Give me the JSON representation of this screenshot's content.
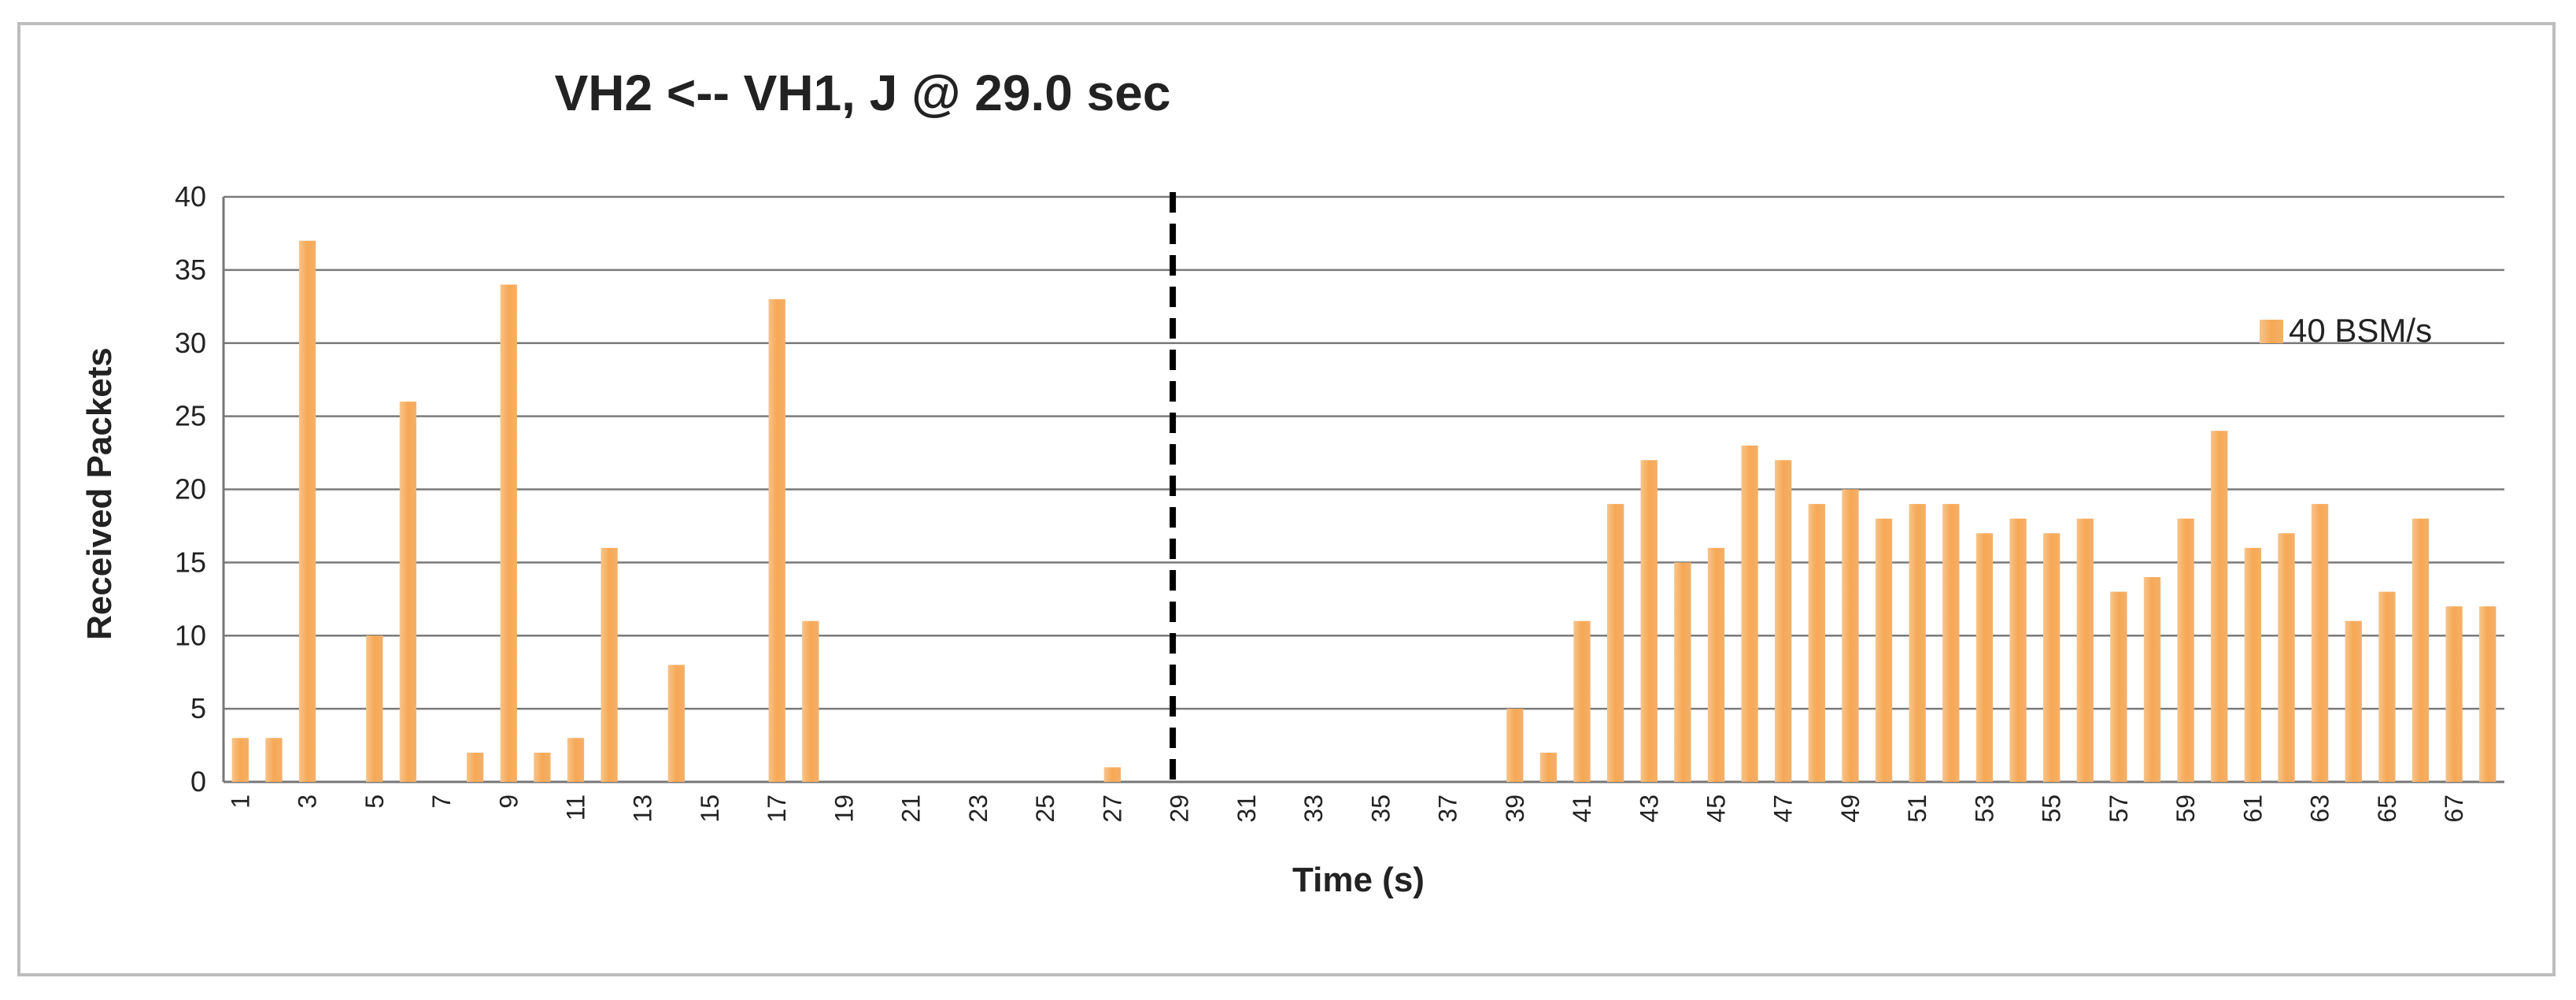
{
  "chart_data": {
    "type": "bar",
    "title": "VH2 <-- VH1, J @ 29.0 sec",
    "xlabel": "Time (s)",
    "ylabel": "Received Packets",
    "ylim": [
      0,
      40
    ],
    "yticks": [
      0,
      5,
      10,
      15,
      20,
      25,
      30,
      35,
      40
    ],
    "categories": [
      1,
      2,
      3,
      4,
      5,
      6,
      7,
      8,
      9,
      10,
      11,
      12,
      13,
      14,
      15,
      16,
      17,
      18,
      19,
      20,
      21,
      22,
      23,
      24,
      25,
      26,
      27,
      28,
      29,
      30,
      31,
      32,
      33,
      34,
      35,
      36,
      37,
      38,
      39,
      40,
      41,
      42,
      43,
      44,
      45,
      46,
      47,
      48,
      49,
      50,
      51,
      52,
      53,
      54,
      55,
      56,
      57,
      58,
      59,
      60,
      61,
      62,
      63,
      64,
      65,
      66,
      67,
      68
    ],
    "xtick_labels": [
      "1",
      "3",
      "5",
      "7",
      "9",
      "11",
      "13",
      "15",
      "17",
      "19",
      "21",
      "23",
      "25",
      "27",
      "29",
      "31",
      "33",
      "35",
      "37",
      "39",
      "41",
      "43",
      "45",
      "47",
      "49",
      "51",
      "53",
      "55",
      "57",
      "59",
      "61",
      "63",
      "65",
      "67"
    ],
    "series": [
      {
        "name": "40 BSM/s",
        "color": "#f5a54a",
        "values": [
          3,
          3,
          37,
          0,
          10,
          26,
          0,
          2,
          34,
          2,
          3,
          16,
          0,
          8,
          0,
          0,
          33,
          11,
          0,
          0,
          0,
          0,
          0,
          0,
          0,
          0,
          1,
          0,
          0,
          0,
          0,
          0,
          0,
          0,
          0,
          0,
          0,
          0,
          5,
          2,
          11,
          19,
          22,
          15,
          16,
          23,
          22,
          19,
          20,
          18,
          19,
          19,
          17,
          18,
          17,
          18,
          13,
          14,
          18,
          24,
          16,
          17,
          19,
          11,
          13,
          18,
          12,
          12
        ]
      }
    ],
    "marker_line": {
      "x": 29,
      "style": "dashed",
      "color": "#000000"
    },
    "grid": true,
    "legend": "right"
  }
}
